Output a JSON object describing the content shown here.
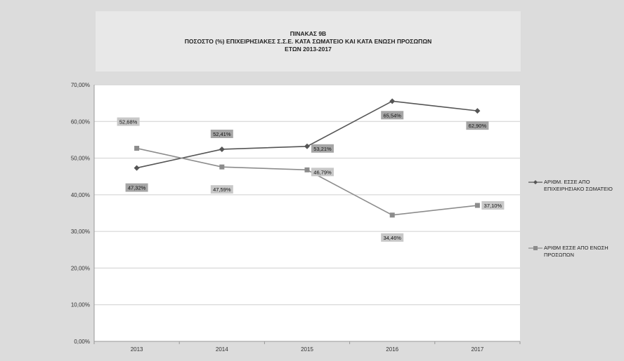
{
  "chart_data": {
    "type": "line",
    "title_lines": [
      "ΠΙΝΑΚΑΣ 9Β",
      "ΠΟΣΟΣΤΟ (%)  ΕΠΙΧΕΙΡΗΣΙΑΚΕΣ Σ.Σ.Ε. ΚΑΤΑ ΣΩΜΑΤΕΙΟ ΚΑΙ ΚΑΤΑ ΕΝΩΣΗ ΠΡΟΣΩΠΩΝ",
      "ΕΤΩΝ 2013-2017"
    ],
    "categories": [
      "2013",
      "2014",
      "2015",
      "2016",
      "2017"
    ],
    "ylim": [
      0,
      70
    ],
    "y_ticks": [
      "0,00%",
      "10,00%",
      "20,00%",
      "30,00%",
      "40,00%",
      "50,00%",
      "60,00%",
      "70,00%"
    ],
    "grid": true,
    "legend_position": "right",
    "series": [
      {
        "name": "ΑΡΙΘΜ. ΕΣΣΕ ΑΠΟ ΕΠΙΧΕΙΡΗΣΙΑΚΟ ΣΩΜΑΤΕΙΟ",
        "marker": "diamond",
        "color": "#555555",
        "values": [
          47.32,
          52.41,
          53.21,
          65.54,
          62.9
        ],
        "labels": [
          "47,32%",
          "52,41%",
          "53,21%",
          "65,54%",
          "62,90%"
        ]
      },
      {
        "name": "ΑΡΙΘΜ ΕΣΣΕ ΑΠΟ ΕΝΩΣΗ ΠΡΟΣΩΠΩΝ",
        "marker": "square",
        "color": "#8c8c8c",
        "values": [
          52.68,
          47.59,
          46.79,
          34.46,
          37.1
        ],
        "labels": [
          "52,68%",
          "47,59%",
          "46,79%",
          "34,46%",
          "37,10%"
        ]
      }
    ]
  }
}
